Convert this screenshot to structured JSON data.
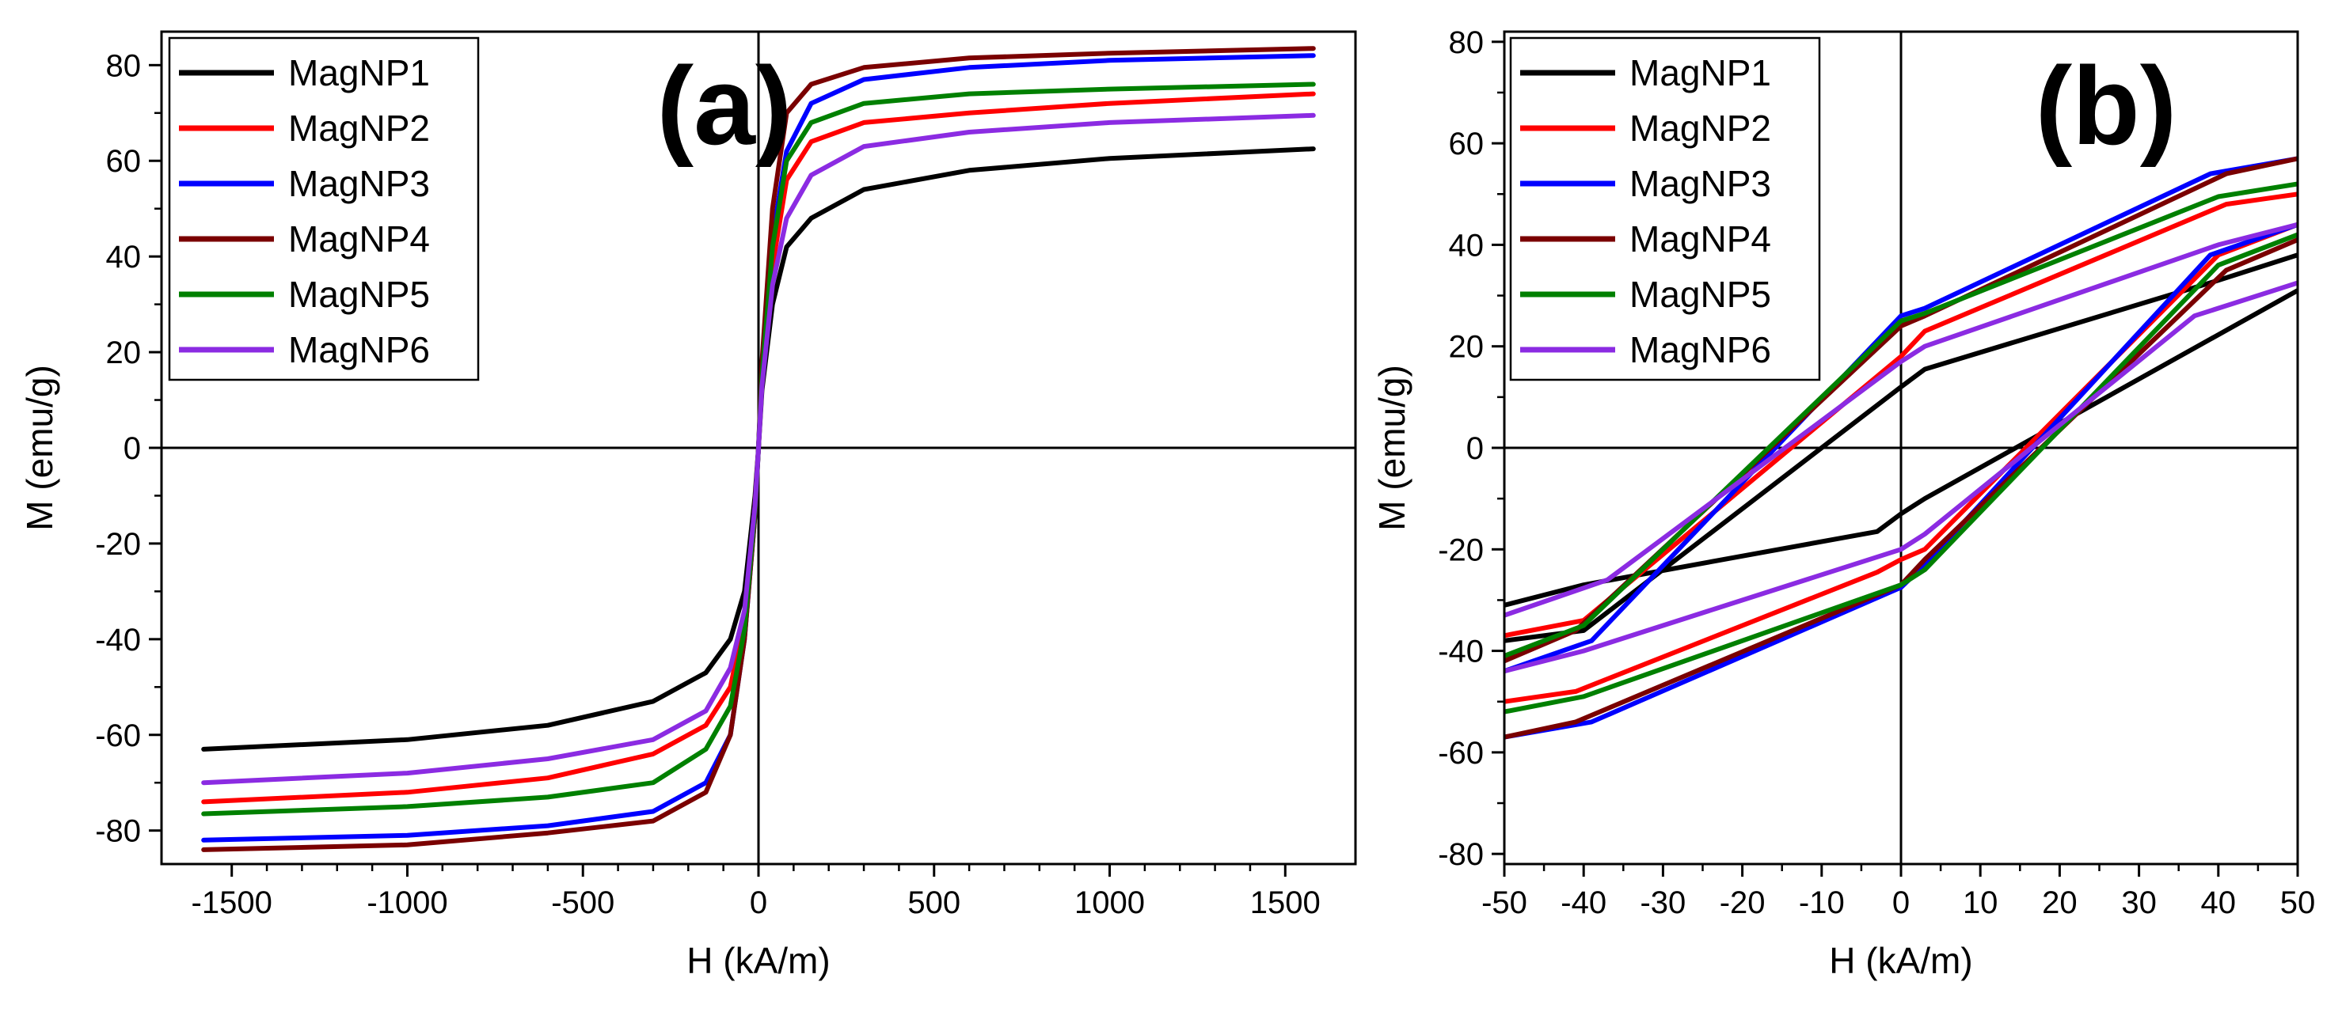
{
  "figure": {
    "colors": {
      "MagNP1": "#000000",
      "MagNP2": "#ff0000",
      "MagNP3": "#0000ff",
      "MagNP4": "#7a0000",
      "MagNP5": "#008000",
      "MagNP6": "#8b2be2"
    }
  },
  "chart_data": [
    {
      "type": "line",
      "panel_label": "(a)",
      "xlabel": "H (kA/m)",
      "ylabel": "M (emu/g)",
      "xlim": [
        -1700,
        1700
      ],
      "ylim": [
        -87,
        87
      ],
      "xticks": [
        -1500,
        -1000,
        -500,
        0,
        500,
        1000,
        1500
      ],
      "xtick_labels": [
        "-1500",
        "-1000",
        "-500",
        "0",
        "500",
        "1000",
        "1500"
      ],
      "yticks": [
        -80,
        -60,
        -40,
        -20,
        0,
        20,
        40,
        60,
        80
      ],
      "ytick_labels": [
        "-80",
        "-60",
        "-40",
        "-20",
        "0",
        "20",
        "40",
        "60",
        "80"
      ],
      "zero_lines": true,
      "legend_position": "top-left",
      "series": [
        {
          "name": "MagNP1",
          "color": "#000000",
          "points": [
            [
              -1580,
              -63
            ],
            [
              -1000,
              -61
            ],
            [
              -600,
              -58
            ],
            [
              -300,
              -53
            ],
            [
              -150,
              -47
            ],
            [
              -80,
              -40
            ],
            [
              -40,
              -30
            ],
            [
              -10,
              -10
            ],
            [
              0,
              0
            ],
            [
              10,
              12
            ],
            [
              40,
              30
            ],
            [
              80,
              42
            ],
            [
              150,
              48
            ],
            [
              300,
              54
            ],
            [
              600,
              58
            ],
            [
              1000,
              60.5
            ],
            [
              1580,
              62.5
            ]
          ]
        },
        {
          "name": "MagNP2",
          "color": "#ff0000",
          "points": [
            [
              -1580,
              -74
            ],
            [
              -1000,
              -72
            ],
            [
              -600,
              -69
            ],
            [
              -300,
              -64
            ],
            [
              -150,
              -58
            ],
            [
              -80,
              -50
            ],
            [
              -40,
              -36
            ],
            [
              -10,
              -12
            ],
            [
              0,
              0
            ],
            [
              10,
              14
            ],
            [
              40,
              38
            ],
            [
              80,
              56
            ],
            [
              150,
              64
            ],
            [
              300,
              68
            ],
            [
              600,
              70
            ],
            [
              1000,
              72
            ],
            [
              1580,
              74
            ]
          ]
        },
        {
          "name": "MagNP3",
          "color": "#0000ff",
          "points": [
            [
              -1580,
              -82
            ],
            [
              -1000,
              -81
            ],
            [
              -600,
              -79
            ],
            [
              -300,
              -76
            ],
            [
              -150,
              -70
            ],
            [
              -80,
              -60
            ],
            [
              -40,
              -40
            ],
            [
              -10,
              -14
            ],
            [
              0,
              0
            ],
            [
              10,
              16
            ],
            [
              40,
              44
            ],
            [
              80,
              62
            ],
            [
              150,
              72
            ],
            [
              300,
              77
            ],
            [
              600,
              79.5
            ],
            [
              1000,
              81
            ],
            [
              1580,
              82
            ]
          ]
        },
        {
          "name": "MagNP4",
          "color": "#7a0000",
          "points": [
            [
              -1580,
              -84
            ],
            [
              -1000,
              -83
            ],
            [
              -600,
              -80.5
            ],
            [
              -300,
              -78
            ],
            [
              -150,
              -72
            ],
            [
              -80,
              -60
            ],
            [
              -40,
              -40
            ],
            [
              -10,
              -14
            ],
            [
              0,
              0
            ],
            [
              10,
              18
            ],
            [
              40,
              50
            ],
            [
              80,
              70
            ],
            [
              150,
              76
            ],
            [
              300,
              79.5
            ],
            [
              600,
              81.5
            ],
            [
              1000,
              82.5
            ],
            [
              1580,
              83.5
            ]
          ]
        },
        {
          "name": "MagNP5",
          "color": "#008000",
          "points": [
            [
              -1580,
              -76.5
            ],
            [
              -1000,
              -75
            ],
            [
              -600,
              -73
            ],
            [
              -300,
              -70
            ],
            [
              -150,
              -63
            ],
            [
              -80,
              -54
            ],
            [
              -40,
              -38
            ],
            [
              -10,
              -13
            ],
            [
              0,
              0
            ],
            [
              10,
              15
            ],
            [
              40,
              42
            ],
            [
              80,
              60
            ],
            [
              150,
              68
            ],
            [
              300,
              72
            ],
            [
              600,
              74
            ],
            [
              1000,
              75
            ],
            [
              1580,
              76
            ]
          ]
        },
        {
          "name": "MagNP6",
          "color": "#8b2be2",
          "points": [
            [
              -1580,
              -70
            ],
            [
              -1000,
              -68
            ],
            [
              -600,
              -65
            ],
            [
              -300,
              -61
            ],
            [
              -150,
              -55
            ],
            [
              -80,
              -46
            ],
            [
              -40,
              -34
            ],
            [
              -10,
              -12
            ],
            [
              0,
              0
            ],
            [
              10,
              13
            ],
            [
              40,
              34
            ],
            [
              80,
              48
            ],
            [
              150,
              57
            ],
            [
              300,
              63
            ],
            [
              600,
              66
            ],
            [
              1000,
              68
            ],
            [
              1580,
              69.5
            ]
          ]
        }
      ]
    },
    {
      "type": "line",
      "panel_label": "(b)",
      "xlabel": "H (kA/m)",
      "ylabel": "M (emu/g)",
      "xlim": [
        -50,
        50
      ],
      "ylim": [
        -82,
        82
      ],
      "xticks": [
        -50,
        -40,
        -30,
        -20,
        -10,
        0,
        10,
        20,
        30,
        40,
        50
      ],
      "xtick_labels": [
        "-50",
        "-40",
        "-30",
        "-20",
        "-10",
        "0",
        "10",
        "20",
        "30",
        "40",
        "50"
      ],
      "yticks": [
        -80,
        -60,
        -40,
        -20,
        0,
        20,
        40,
        60,
        80
      ],
      "ytick_labels": [
        "-80",
        "-60",
        "-40",
        "-20",
        "0",
        "20",
        "40",
        "60",
        "80"
      ],
      "zero_lines": true,
      "legend_position": "top-left",
      "series": [
        {
          "name": "MagNP1",
          "color": "#000000",
          "points": [
            [
              -50,
              -31
            ],
            [
              -40,
              -27
            ],
            [
              -3,
              -16.5
            ],
            [
              0,
              -13
            ],
            [
              3,
              -10
            ],
            [
              50,
              31
            ]
          ],
          "points_upper": [
            [
              -50,
              -38
            ],
            [
              -40,
              -36
            ],
            [
              0,
              12
            ],
            [
              3,
              15.5
            ],
            [
              40,
              33
            ],
            [
              50,
              38
            ]
          ]
        },
        {
          "name": "MagNP2",
          "color": "#ff0000",
          "points": [
            [
              -50,
              -50
            ],
            [
              -41,
              -48
            ],
            [
              -3,
              -24.5
            ],
            [
              0,
              -22
            ],
            [
              3,
              -20
            ],
            [
              40,
              38
            ],
            [
              50,
              44
            ]
          ],
          "points_upper": [
            [
              -50,
              -37
            ],
            [
              -40,
              -34
            ],
            [
              0,
              18
            ],
            [
              3,
              23
            ],
            [
              41,
              48
            ],
            [
              50,
              50
            ]
          ]
        },
        {
          "name": "MagNP3",
          "color": "#0000ff",
          "points": [
            [
              -50,
              -57
            ],
            [
              -39,
              -54
            ],
            [
              0,
              -27.5
            ],
            [
              3,
              -23
            ],
            [
              39,
              38
            ],
            [
              50,
              44
            ]
          ],
          "points_upper": [
            [
              -50,
              -44
            ],
            [
              -39,
              -38
            ],
            [
              0,
              26
            ],
            [
              3,
              27.5
            ],
            [
              39,
              54
            ],
            [
              50,
              57
            ]
          ]
        },
        {
          "name": "MagNP4",
          "color": "#7a0000",
          "points": [
            [
              -50,
              -57
            ],
            [
              -41,
              -54
            ],
            [
              0,
              -27
            ],
            [
              3,
              -22
            ],
            [
              41,
              35
            ],
            [
              50,
              41
            ]
          ],
          "points_upper": [
            [
              -50,
              -42
            ],
            [
              -41,
              -36
            ],
            [
              0,
              24
            ],
            [
              3,
              26
            ],
            [
              41,
              54
            ],
            [
              50,
              57
            ]
          ]
        },
        {
          "name": "MagNP5",
          "color": "#008000",
          "points": [
            [
              -50,
              -52
            ],
            [
              -40,
              -49
            ],
            [
              0,
              -27
            ],
            [
              3,
              -24
            ],
            [
              40,
              36
            ],
            [
              50,
              42
            ]
          ],
          "points_upper": [
            [
              -50,
              -41
            ],
            [
              -40,
              -35
            ],
            [
              0,
              25
            ],
            [
              3,
              26.5
            ],
            [
              40,
              49.5
            ],
            [
              50,
              52
            ]
          ]
        },
        {
          "name": "MagNP6",
          "color": "#8b2be2",
          "points": [
            [
              -50,
              -44
            ],
            [
              -40,
              -40
            ],
            [
              0,
              -20
            ],
            [
              3,
              -17
            ],
            [
              37,
              26
            ],
            [
              50,
              32.5
            ]
          ],
          "points_upper": [
            [
              -50,
              -33
            ],
            [
              -37,
              -26
            ],
            [
              0,
              17
            ],
            [
              3,
              20
            ],
            [
              40,
              40
            ],
            [
              50,
              44
            ]
          ]
        }
      ]
    }
  ]
}
